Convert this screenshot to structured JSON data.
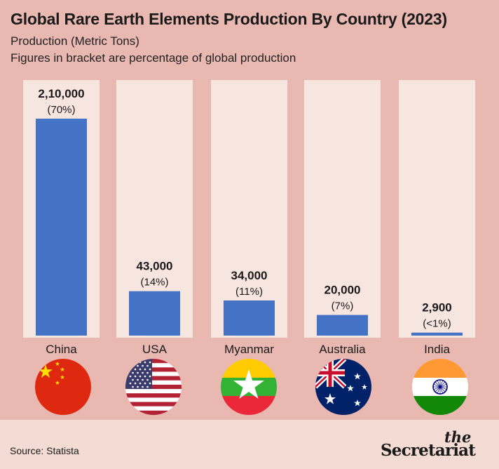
{
  "header": {
    "title": "Global Rare Earth Elements Production By Country (2023)",
    "subtitle_line1": "Production (Metric Tons)",
    "subtitle_line2": "Figures in bracket are percentage of global production"
  },
  "chart_data": {
    "type": "bar",
    "title": "Global Rare Earth Elements Production By Country (2023)",
    "ylabel": "Production (Metric Tons)",
    "categories": [
      "China",
      "USA",
      "Myanmar",
      "Australia",
      "India"
    ],
    "values": [
      210000,
      43000,
      34000,
      20000,
      2900
    ],
    "value_labels": [
      "2,10,000",
      "43,000",
      "34,000",
      "20,000",
      "2,900"
    ],
    "share_labels": [
      "(70%)",
      "(14%)",
      "(11%)",
      "(7%)",
      "(<1%)"
    ],
    "bar_color": "#4472c4",
    "column_bg_color": "#f7e5e0",
    "background_color": "#e8b8b1",
    "flag_icons": [
      "china-flag-icon",
      "usa-flag-icon",
      "myanmar-flag-icon",
      "australia-flag-icon",
      "india-flag-icon"
    ]
  },
  "footer": {
    "source": "Source: Statista",
    "brand_the": "the",
    "brand_name": "Secretariat"
  }
}
